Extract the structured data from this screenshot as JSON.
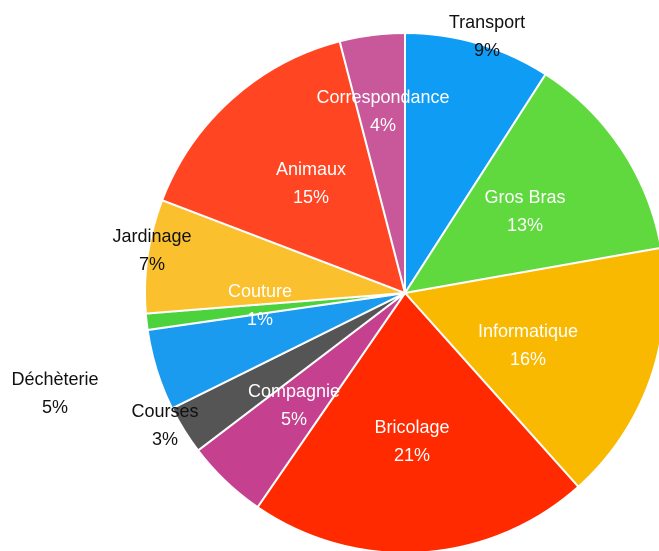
{
  "chart_data": {
    "type": "pie",
    "categories": [
      "Transport",
      "Gros Bras",
      "Informatique",
      "Bricolage",
      "Compagnie",
      "Courses",
      "Déchèterie",
      "Couture",
      "Jardinage",
      "Animaux",
      "Correspondance"
    ],
    "values": [
      9,
      13,
      16,
      21,
      5,
      3,
      5,
      1,
      7,
      15,
      4
    ],
    "value_labels": [
      "9%",
      "13%",
      "16%",
      "21%",
      "5%",
      "3%",
      "5%",
      "1%",
      "7%",
      "15%",
      "4%"
    ],
    "colors": [
      "#0f9cf5",
      "#5fd93e",
      "#f9b900",
      "#ff2a00",
      "#c5418f",
      "#555555",
      "#1a9bf0",
      "#4cd23c",
      "#fbc02d",
      "#ff4522",
      "#c8589a"
    ]
  }
}
